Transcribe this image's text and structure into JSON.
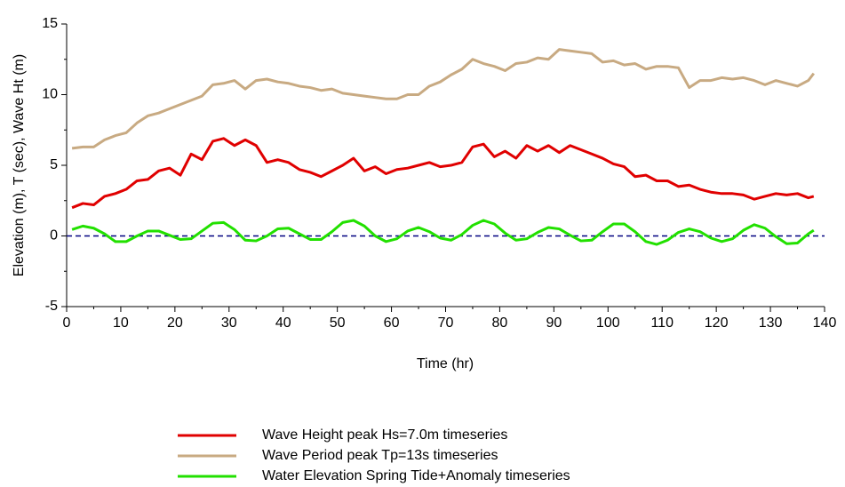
{
  "chart_data": {
    "type": "line",
    "x_label": "Time (hr)",
    "y_label": "Elevation (m), T (sec), Wave Ht (m)",
    "xlim": [
      0,
      140
    ],
    "xticks": [
      0,
      10,
      20,
      30,
      40,
      50,
      60,
      70,
      80,
      90,
      100,
      110,
      120,
      130,
      140
    ],
    "xminorticks": [
      5,
      15,
      25,
      35,
      45,
      55,
      65,
      75,
      85,
      95,
      105,
      115,
      125,
      135
    ],
    "ylim": [
      -5,
      15
    ],
    "yticks": [
      -5,
      0,
      5,
      10,
      15
    ],
    "yminorticks": [
      -2.5,
      2.5,
      7.5,
      12.5
    ],
    "reference_line": {
      "y": 0,
      "color": "#000080",
      "style": "dashed"
    },
    "legend": "bottom",
    "x": [
      1,
      3,
      5,
      7,
      9,
      11,
      13,
      15,
      17,
      19,
      21,
      23,
      25,
      27,
      29,
      31,
      33,
      35,
      37,
      39,
      41,
      43,
      45,
      47,
      49,
      51,
      53,
      55,
      57,
      59,
      61,
      63,
      65,
      67,
      69,
      71,
      73,
      75,
      77,
      79,
      81,
      83,
      85,
      87,
      89,
      91,
      93,
      95,
      97,
      99,
      101,
      103,
      105,
      107,
      109,
      111,
      113,
      115,
      117,
      119,
      121,
      123,
      125,
      127,
      129,
      131,
      133,
      135,
      137,
      138
    ],
    "series": [
      {
        "name": "Wave Height peak Hs=7.0m timeseries",
        "color": "#e00000",
        "values": [
          2.0,
          2.3,
          2.2,
          2.8,
          3.0,
          3.3,
          3.9,
          4.0,
          4.6,
          4.8,
          4.3,
          5.8,
          5.4,
          6.7,
          6.9,
          6.4,
          6.8,
          6.4,
          5.2,
          5.4,
          5.2,
          4.7,
          4.5,
          4.2,
          4.6,
          5.0,
          5.5,
          4.6,
          4.9,
          4.4,
          4.7,
          4.8,
          5.0,
          5.2,
          4.9,
          5.0,
          5.2,
          6.3,
          6.5,
          5.6,
          6.0,
          5.5,
          6.4,
          6.0,
          6.4,
          5.9,
          6.4,
          6.1,
          5.8,
          5.5,
          5.1,
          4.9,
          4.2,
          4.3,
          3.9,
          3.9,
          3.5,
          3.6,
          3.3,
          3.1,
          3.0,
          3.0,
          2.9,
          2.6,
          2.8,
          3.0,
          2.9,
          3.0,
          2.7,
          2.8
        ]
      },
      {
        "name": "Wave Period peak Tp=13s timeseries",
        "color": "#c8aa82",
        "values": [
          6.2,
          6.3,
          6.3,
          6.8,
          7.1,
          7.3,
          8.0,
          8.5,
          8.7,
          9.0,
          9.3,
          9.6,
          9.9,
          10.7,
          10.8,
          11.0,
          10.4,
          11.0,
          11.1,
          10.9,
          10.8,
          10.6,
          10.5,
          10.3,
          10.4,
          10.1,
          10.0,
          9.9,
          9.8,
          9.7,
          9.7,
          10.0,
          10.0,
          10.6,
          10.9,
          11.4,
          11.8,
          12.5,
          12.2,
          12.0,
          11.7,
          12.2,
          12.3,
          12.6,
          12.5,
          13.2,
          13.1,
          13.0,
          12.9,
          12.3,
          12.4,
          12.1,
          12.2,
          11.8,
          12.0,
          12.0,
          11.9,
          10.5,
          11.0,
          11.0,
          11.2,
          11.1,
          11.2,
          11.0,
          10.7,
          11.0,
          10.8,
          10.6,
          11.0,
          11.5
        ]
      },
      {
        "name": "Water Elevation Spring Tide+Anomaly timeseries",
        "color": "#22e000",
        "values": [
          0.45,
          0.7,
          0.55,
          0.15,
          -0.4,
          -0.4,
          0.0,
          0.35,
          0.35,
          0.05,
          -0.25,
          -0.2,
          0.35,
          0.9,
          0.95,
          0.45,
          -0.3,
          -0.35,
          0.0,
          0.5,
          0.55,
          0.15,
          -0.25,
          -0.25,
          0.3,
          0.95,
          1.1,
          0.7,
          0.0,
          -0.4,
          -0.2,
          0.35,
          0.6,
          0.3,
          -0.15,
          -0.3,
          0.1,
          0.75,
          1.1,
          0.85,
          0.2,
          -0.3,
          -0.2,
          0.25,
          0.6,
          0.5,
          0.05,
          -0.35,
          -0.3,
          0.3,
          0.85,
          0.85,
          0.3,
          -0.4,
          -0.6,
          -0.3,
          0.25,
          0.5,
          0.3,
          -0.15,
          -0.4,
          -0.2,
          0.4,
          0.8,
          0.55,
          -0.05,
          -0.55,
          -0.5,
          0.15,
          0.4
        ]
      }
    ]
  }
}
